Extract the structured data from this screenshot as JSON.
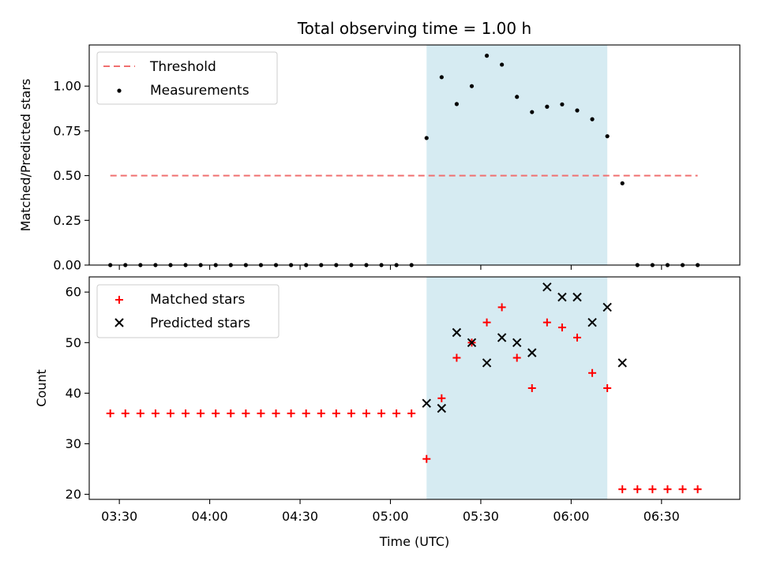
{
  "chart_data": [
    {
      "type": "scatter",
      "title": "Total observing time = 1.00 h",
      "xlabel": "",
      "ylabel": "Matched/Predicted stars",
      "ylim": [
        0,
        1.23
      ],
      "yticks": [
        "0.00",
        "0.25",
        "0.50",
        "0.75",
        "1.00"
      ],
      "ytick_values": [
        0,
        0.25,
        0.5,
        0.75,
        1.0
      ],
      "xlim": [
        "03:20",
        "06:56"
      ],
      "legend_position": "top-left",
      "grid": false,
      "highlight_band": {
        "start": "05:12",
        "end": "06:12",
        "color": "#add8e6"
      },
      "threshold": {
        "name": "Threshold",
        "y": 0.5,
        "x_start": "03:27",
        "x_end": "06:42",
        "color": "#f07070"
      },
      "series": [
        {
          "name": "Measurements",
          "color": "#000000",
          "marker": "dot",
          "points": [
            {
              "x": "03:27",
              "y": 0
            },
            {
              "x": "03:32",
              "y": 0
            },
            {
              "x": "03:37",
              "y": 0
            },
            {
              "x": "03:42",
              "y": 0
            },
            {
              "x": "03:47",
              "y": 0
            },
            {
              "x": "03:52",
              "y": 0
            },
            {
              "x": "03:57",
              "y": 0
            },
            {
              "x": "04:02",
              "y": 0
            },
            {
              "x": "04:07",
              "y": 0
            },
            {
              "x": "04:12",
              "y": 0
            },
            {
              "x": "04:17",
              "y": 0
            },
            {
              "x": "04:22",
              "y": 0
            },
            {
              "x": "04:27",
              "y": 0
            },
            {
              "x": "04:32",
              "y": 0
            },
            {
              "x": "04:37",
              "y": 0
            },
            {
              "x": "04:42",
              "y": 0
            },
            {
              "x": "04:47",
              "y": 0
            },
            {
              "x": "04:52",
              "y": 0
            },
            {
              "x": "04:57",
              "y": 0
            },
            {
              "x": "05:02",
              "y": 0
            },
            {
              "x": "05:07",
              "y": 0
            },
            {
              "x": "05:12",
              "y": 0.71
            },
            {
              "x": "05:17",
              "y": 1.05
            },
            {
              "x": "05:22",
              "y": 0.9
            },
            {
              "x": "05:27",
              "y": 1.0
            },
            {
              "x": "05:32",
              "y": 1.17
            },
            {
              "x": "05:37",
              "y": 1.12
            },
            {
              "x": "05:42",
              "y": 0.94
            },
            {
              "x": "05:47",
              "y": 0.855
            },
            {
              "x": "05:52",
              "y": 0.885
            },
            {
              "x": "05:57",
              "y": 0.898
            },
            {
              "x": "06:02",
              "y": 0.864
            },
            {
              "x": "06:07",
              "y": 0.815
            },
            {
              "x": "06:12",
              "y": 0.72
            },
            {
              "x": "06:17",
              "y": 0.457
            },
            {
              "x": "06:22",
              "y": 0
            },
            {
              "x": "06:27",
              "y": 0
            },
            {
              "x": "06:32",
              "y": 0
            },
            {
              "x": "06:37",
              "y": 0
            },
            {
              "x": "06:42",
              "y": 0
            }
          ]
        }
      ]
    },
    {
      "type": "scatter",
      "title": "",
      "xlabel": "Time (UTC)",
      "ylabel": "Count",
      "ylim": [
        19,
        63
      ],
      "yticks": [
        "20",
        "30",
        "40",
        "50",
        "60"
      ],
      "ytick_values": [
        20,
        30,
        40,
        50,
        60
      ],
      "xlim": [
        "03:20",
        "06:56"
      ],
      "xticks": [
        "03:30",
        "04:00",
        "04:30",
        "05:00",
        "05:30",
        "06:00",
        "06:30"
      ],
      "legend_position": "top-left",
      "grid": false,
      "highlight_band": {
        "start": "05:12",
        "end": "06:12",
        "color": "#add8e6"
      },
      "series": [
        {
          "name": "Matched stars",
          "color": "#ff0000",
          "marker": "plus",
          "points": [
            {
              "x": "03:27",
              "y": 36
            },
            {
              "x": "03:32",
              "y": 36
            },
            {
              "x": "03:37",
              "y": 36
            },
            {
              "x": "03:42",
              "y": 36
            },
            {
              "x": "03:47",
              "y": 36
            },
            {
              "x": "03:52",
              "y": 36
            },
            {
              "x": "03:57",
              "y": 36
            },
            {
              "x": "04:02",
              "y": 36
            },
            {
              "x": "04:07",
              "y": 36
            },
            {
              "x": "04:12",
              "y": 36
            },
            {
              "x": "04:17",
              "y": 36
            },
            {
              "x": "04:22",
              "y": 36
            },
            {
              "x": "04:27",
              "y": 36
            },
            {
              "x": "04:32",
              "y": 36
            },
            {
              "x": "04:37",
              "y": 36
            },
            {
              "x": "04:42",
              "y": 36
            },
            {
              "x": "04:47",
              "y": 36
            },
            {
              "x": "04:52",
              "y": 36
            },
            {
              "x": "04:57",
              "y": 36
            },
            {
              "x": "05:02",
              "y": 36
            },
            {
              "x": "05:07",
              "y": 36
            },
            {
              "x": "05:12",
              "y": 27
            },
            {
              "x": "05:17",
              "y": 39
            },
            {
              "x": "05:22",
              "y": 47
            },
            {
              "x": "05:27",
              "y": 50
            },
            {
              "x": "05:32",
              "y": 54
            },
            {
              "x": "05:37",
              "y": 57
            },
            {
              "x": "05:42",
              "y": 47
            },
            {
              "x": "05:47",
              "y": 41
            },
            {
              "x": "05:52",
              "y": 54
            },
            {
              "x": "05:57",
              "y": 53
            },
            {
              "x": "06:02",
              "y": 51
            },
            {
              "x": "06:07",
              "y": 44
            },
            {
              "x": "06:12",
              "y": 41
            },
            {
              "x": "06:17",
              "y": 21
            },
            {
              "x": "06:22",
              "y": 21
            },
            {
              "x": "06:27",
              "y": 21
            },
            {
              "x": "06:32",
              "y": 21
            },
            {
              "x": "06:37",
              "y": 21
            },
            {
              "x": "06:42",
              "y": 21
            }
          ]
        },
        {
          "name": "Predicted stars",
          "color": "#000000",
          "marker": "x",
          "points": [
            {
              "x": "05:12",
              "y": 38
            },
            {
              "x": "05:17",
              "y": 37
            },
            {
              "x": "05:22",
              "y": 52
            },
            {
              "x": "05:27",
              "y": 50
            },
            {
              "x": "05:32",
              "y": 46
            },
            {
              "x": "05:37",
              "y": 51
            },
            {
              "x": "05:42",
              "y": 50
            },
            {
              "x": "05:47",
              "y": 48
            },
            {
              "x": "05:52",
              "y": 61
            },
            {
              "x": "05:57",
              "y": 59
            },
            {
              "x": "06:02",
              "y": 59
            },
            {
              "x": "06:07",
              "y": 54
            },
            {
              "x": "06:12",
              "y": 57
            },
            {
              "x": "06:17",
              "y": 46
            }
          ]
        }
      ]
    }
  ]
}
